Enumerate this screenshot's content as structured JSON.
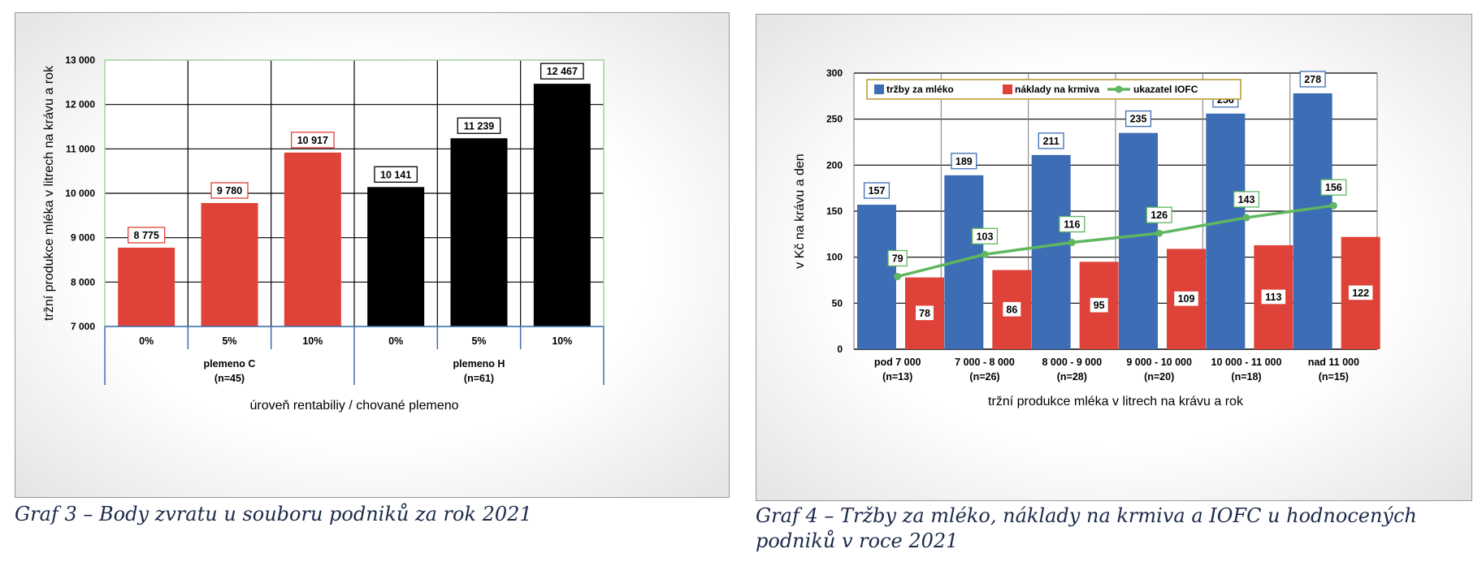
{
  "chart_data": [
    {
      "type": "bar",
      "caption": "Graf 3 – Body zvratu u souboru podniků za rok 2021",
      "xlabel": "úroveň rentabiliy / chované plemeno",
      "ylabel": "tržní produkce mléka v litrech na krávu a rok",
      "ylim": [
        7000,
        13000
      ],
      "yticks": [
        7000,
        8000,
        9000,
        10000,
        11000,
        12000,
        13000
      ],
      "ytick_labels": [
        "7 000",
        "8 000",
        "9 000",
        "10 000",
        "11 000",
        "12 000",
        "13 000"
      ],
      "grid": true,
      "categories": [
        "0%",
        "5%",
        "10%",
        "0%",
        "5%",
        "10%"
      ],
      "groups": [
        {
          "label": "plemeno C",
          "n": "(n=45)",
          "color": "#df4238"
        },
        {
          "label": "plemeno H",
          "n": "(n=61)",
          "color": "#000000"
        }
      ],
      "values": [
        8775,
        9780,
        10917,
        10141,
        11239,
        12467
      ],
      "value_labels": [
        "8 775",
        "9 780",
        "10 917",
        "10 141",
        "11 239",
        "12 467"
      ]
    },
    {
      "type": "bar",
      "caption": "Graf 4 – Tržby za mléko, náklady na krmiva a IOFC u hodnocených podniků v roce 2021",
      "xlabel": "tržní produkce mléka v litrech na krávu a rok",
      "ylabel": "v Kč na krávu a den",
      "ylim": [
        0,
        300
      ],
      "yticks": [
        0,
        50,
        100,
        150,
        200,
        250,
        300
      ],
      "grid": true,
      "legend_position": "top-left",
      "categories": [
        "pod 7 000",
        "7 000 - 8 000",
        "8 000 - 9 000",
        "9 000 - 10 000",
        "10 000 - 11 000",
        "nad 11 000"
      ],
      "category_n": [
        "(n=13)",
        "(n=26)",
        "(n=28)",
        "(n=20)",
        "(n=18)",
        "(n=15)"
      ],
      "series": [
        {
          "name": "tržby za mléko",
          "type": "bar",
          "color": "#3d6db5",
          "values": [
            157,
            189,
            211,
            235,
            256,
            278
          ]
        },
        {
          "name": "náklady na krmiva",
          "type": "bar",
          "color": "#df4238",
          "values": [
            78,
            86,
            95,
            109,
            113,
            122
          ]
        },
        {
          "name": "ukazatel IOFC",
          "type": "line",
          "color": "#5fb760",
          "values": [
            79,
            103,
            116,
            126,
            143,
            156
          ]
        }
      ]
    }
  ]
}
